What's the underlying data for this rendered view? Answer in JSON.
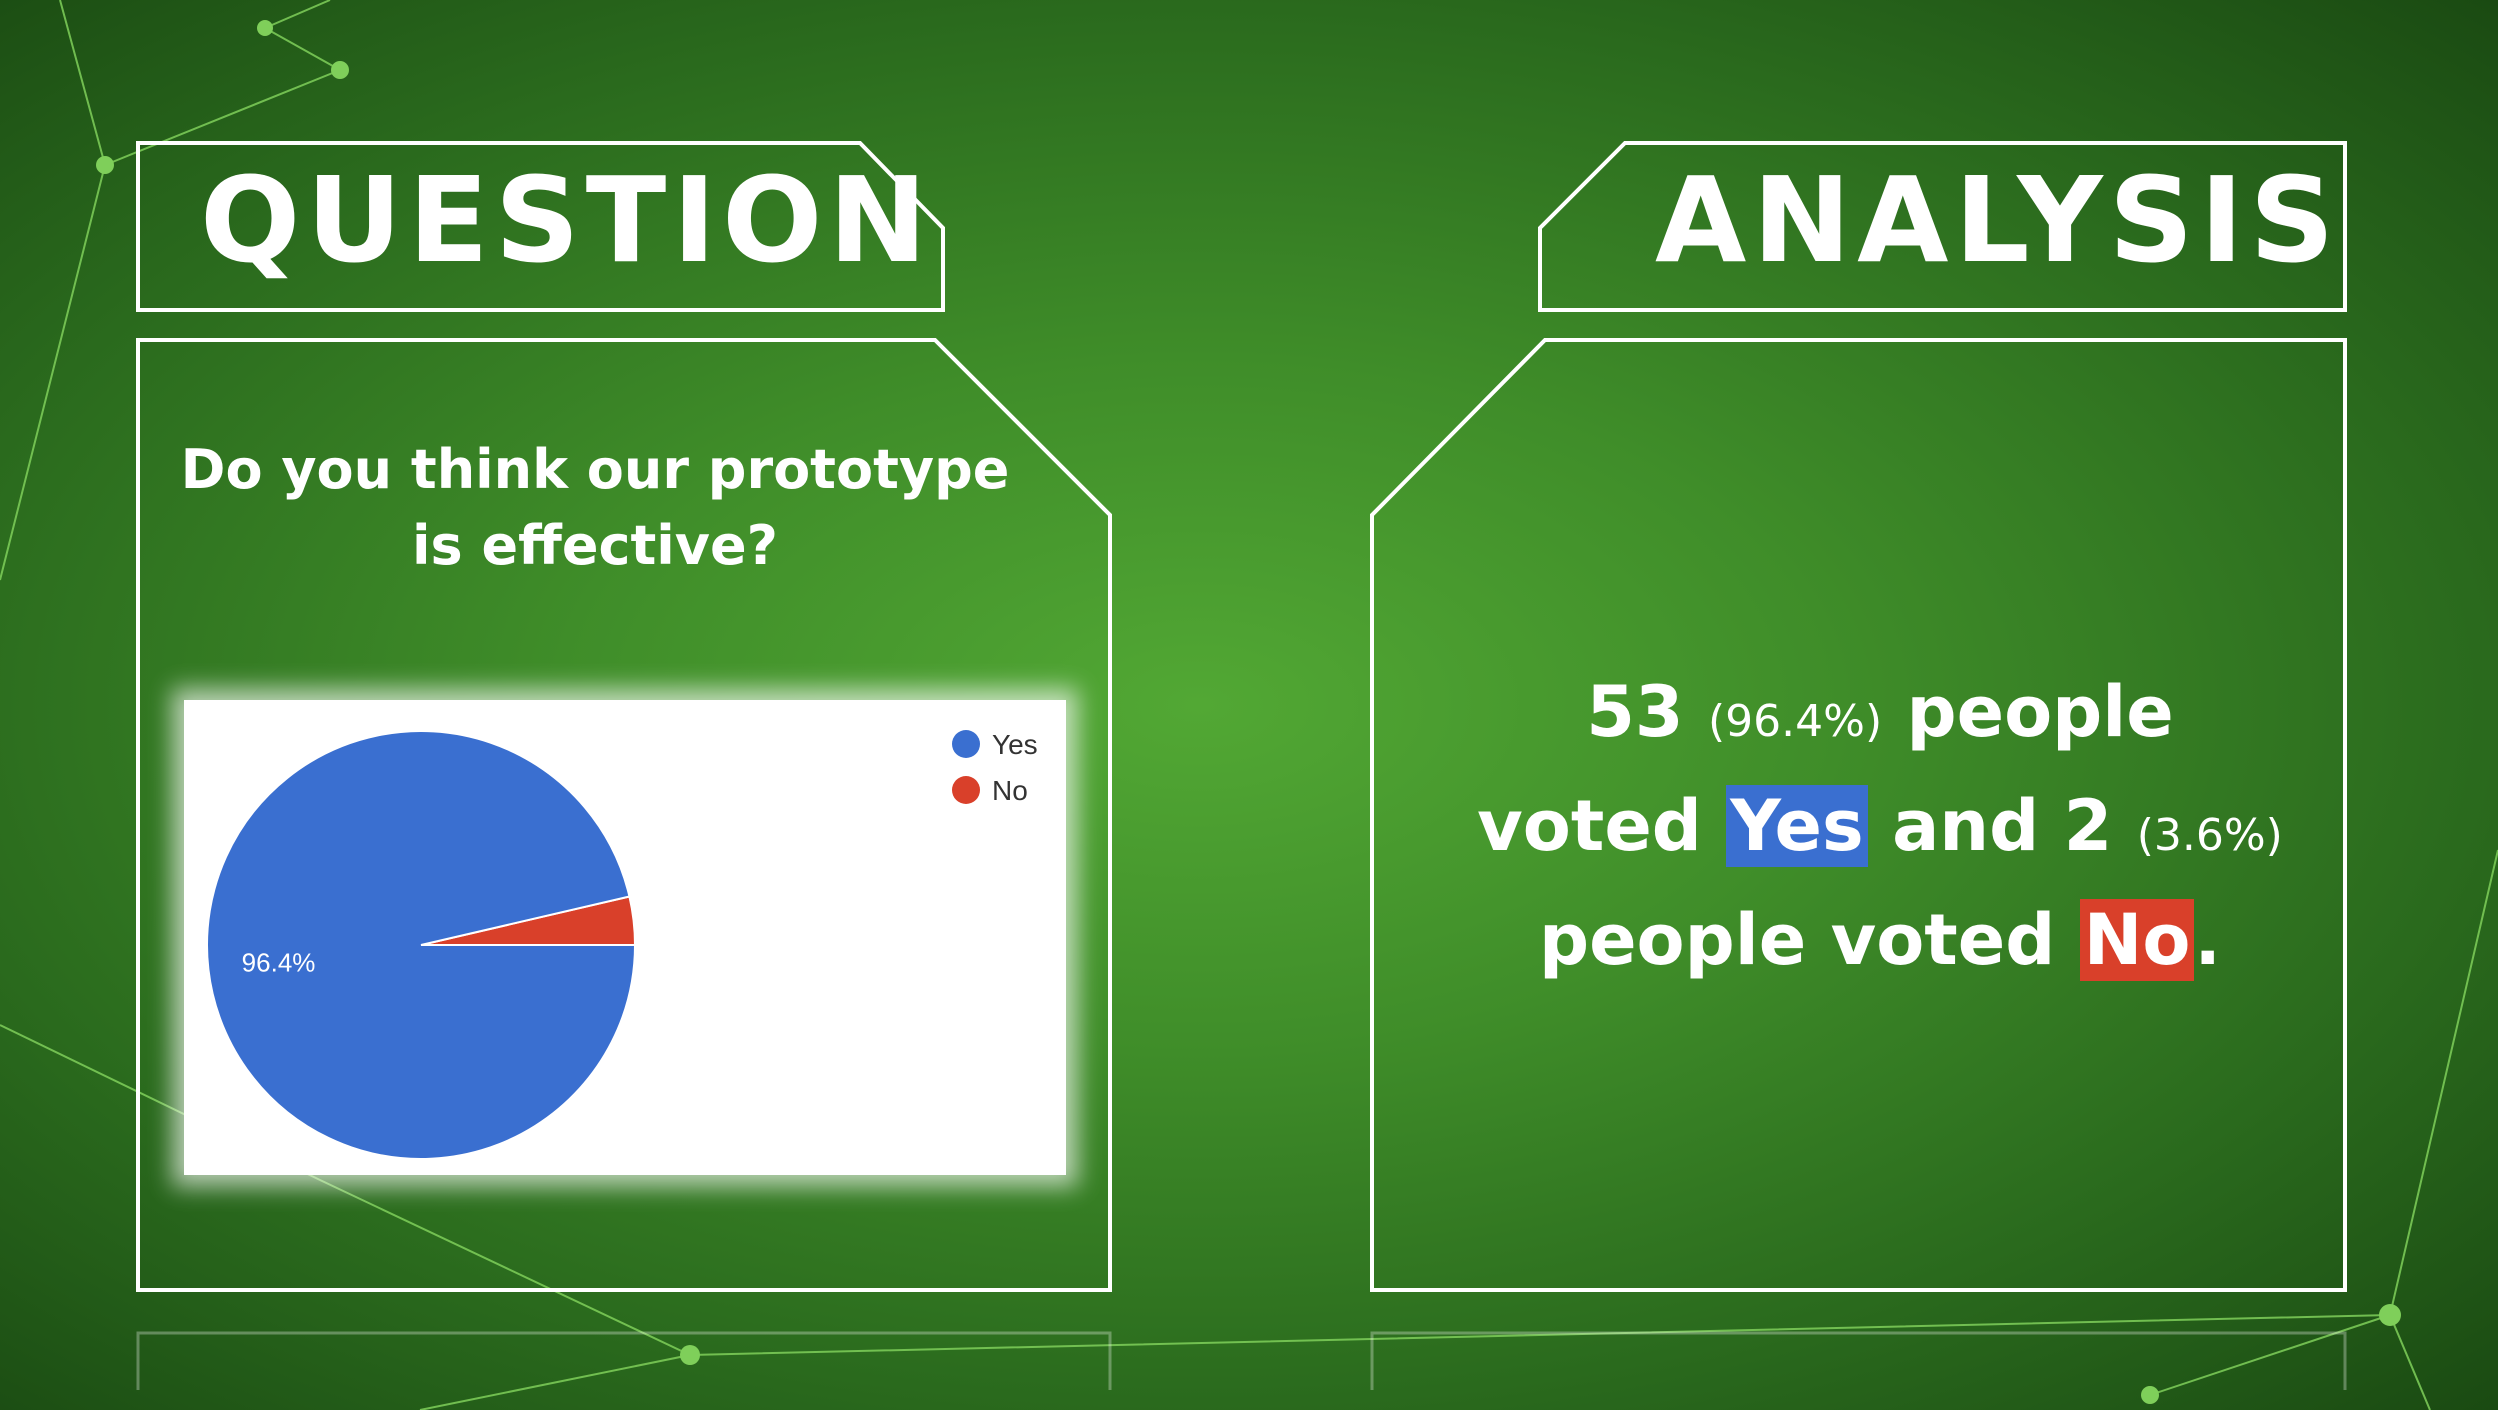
{
  "question_heading": "QUESTION",
  "analysis_heading": "ANALYSIS",
  "question_text": "Do you think our prototype is effective?",
  "chart_data": {
    "type": "pie",
    "categories": [
      "Yes",
      "No"
    ],
    "values": [
      53,
      2
    ],
    "percent_labels": [
      "96.4%",
      ""
    ],
    "legend": [
      "Yes",
      "No"
    ],
    "legend_placement": "top-right",
    "colors": [
      "#3a6fd0",
      "#d9402a"
    ]
  },
  "analysis": {
    "yes_count": "53",
    "yes_percent": "(96.4%)",
    "people_1": "people",
    "voted_1": "voted",
    "yes_label": "Yes",
    "and": "and",
    "no_count": "2",
    "no_percent": "(3.6%)",
    "people_voted_2": "people voted",
    "no_label": "No",
    "period": "."
  },
  "colors": {
    "yes": "#3a6fd0",
    "no": "#d9402a",
    "frame": "#ffffff",
    "accent_lines": "#7fcf5a"
  }
}
